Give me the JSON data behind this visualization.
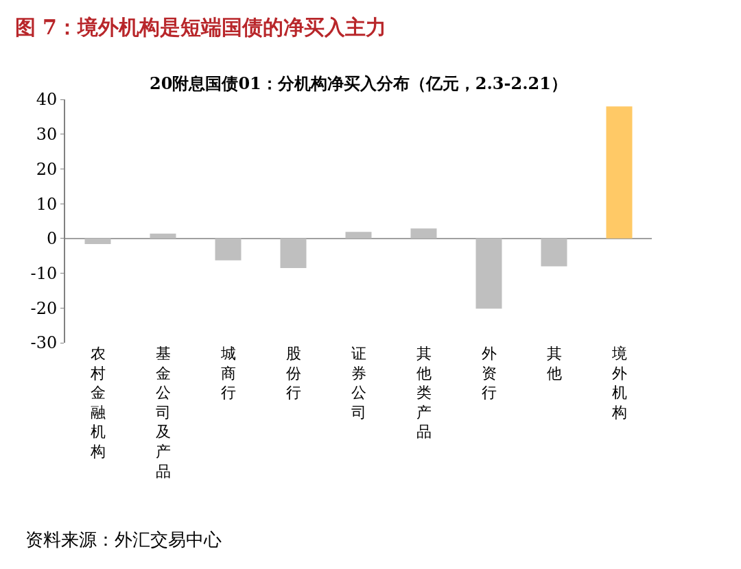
{
  "chart_data": {
    "type": "bar",
    "title": "图 7：境外机构是短端国债的净买入主力",
    "subtitle": "20附息国债01：分机构净买入分布（亿元，2.3-2.21）",
    "categories": [
      "农村金融机构",
      "基金公司及产品",
      "城商行",
      "股份行",
      "证券公司",
      "其他类产品",
      "外资行",
      "其他",
      "境外机构"
    ],
    "values": [
      -1.6,
      1.4,
      -6.3,
      -8.5,
      1.9,
      2.9,
      -20.2,
      -8,
      38
    ],
    "colors": [
      "#bfbfbf",
      "#bfbfbf",
      "#bfbfbf",
      "#bfbfbf",
      "#bfbfbf",
      "#bfbfbf",
      "#bfbfbf",
      "#bfbfbf",
      "#ffc966"
    ],
    "ylim": [
      -30,
      40
    ],
    "yticks": [
      -30,
      -20,
      -10,
      0,
      10,
      20,
      30,
      40
    ],
    "annotations": [
      "资料来源：外汇交易中心"
    ]
  }
}
